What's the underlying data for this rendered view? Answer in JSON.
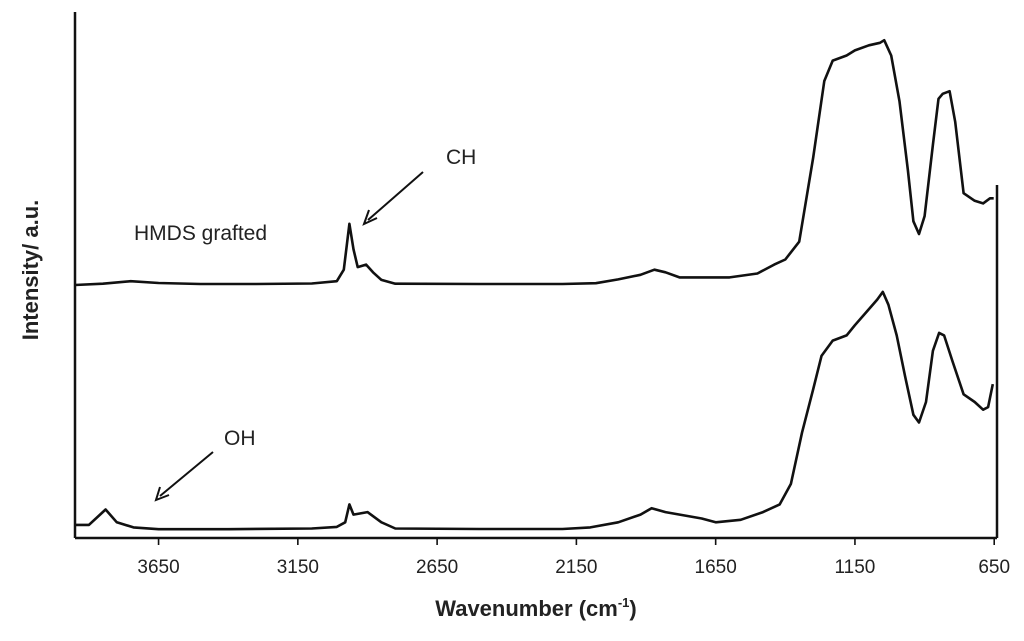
{
  "chart_data": {
    "type": "line",
    "title": "",
    "xlabel": "Wavenumber (cm",
    "xlabel_sup": "-1",
    "xlabel_end": ")",
    "ylabel": "Intensity/ a.u.",
    "xlim": [
      3950,
      640
    ],
    "x_reversed": true,
    "y_ticks_shown": false,
    "grid": false,
    "x_ticks": [
      "3650",
      "3150",
      "2650",
      "2150",
      "1650",
      "1150",
      "650"
    ],
    "x_tick_values": [
      3650,
      3150,
      2650,
      2150,
      1650,
      1150,
      650
    ],
    "series": [
      {
        "name": "HMDS grafted",
        "points": [
          [
            3950,
            0.0
          ],
          [
            3850,
            0.005
          ],
          [
            3750,
            0.015
          ],
          [
            3650,
            0.008
          ],
          [
            3500,
            0.004
          ],
          [
            3300,
            0.004
          ],
          [
            3100,
            0.006
          ],
          [
            3010,
            0.015
          ],
          [
            2985,
            0.06
          ],
          [
            2965,
            0.24
          ],
          [
            2950,
            0.14
          ],
          [
            2935,
            0.07
          ],
          [
            2905,
            0.08
          ],
          [
            2880,
            0.05
          ],
          [
            2850,
            0.02
          ],
          [
            2800,
            0.005
          ],
          [
            2500,
            0.004
          ],
          [
            2200,
            0.004
          ],
          [
            2080,
            0.007
          ],
          [
            2000,
            0.022
          ],
          [
            1920,
            0.04
          ],
          [
            1870,
            0.06
          ],
          [
            1830,
            0.05
          ],
          [
            1780,
            0.03
          ],
          [
            1700,
            0.03
          ],
          [
            1600,
            0.03
          ],
          [
            1500,
            0.045
          ],
          [
            1440,
            0.08
          ],
          [
            1400,
            0.1
          ],
          [
            1350,
            0.17
          ],
          [
            1300,
            0.5
          ],
          [
            1260,
            0.8
          ],
          [
            1230,
            0.88
          ],
          [
            1180,
            0.9
          ],
          [
            1150,
            0.92
          ],
          [
            1100,
            0.94
          ],
          [
            1060,
            0.95
          ],
          [
            1045,
            0.96
          ],
          [
            1020,
            0.9
          ],
          [
            990,
            0.72
          ],
          [
            960,
            0.45
          ],
          [
            940,
            0.25
          ],
          [
            920,
            0.2
          ],
          [
            900,
            0.27
          ],
          [
            870,
            0.55
          ],
          [
            850,
            0.73
          ],
          [
            835,
            0.75
          ],
          [
            810,
            0.76
          ],
          [
            790,
            0.64
          ],
          [
            760,
            0.36
          ],
          [
            720,
            0.33
          ],
          [
            690,
            0.32
          ],
          [
            665,
            0.34
          ],
          [
            652,
            0.34
          ]
        ]
      },
      {
        "name": "",
        "points": [
          [
            3950,
            0.02
          ],
          [
            3900,
            0.02
          ],
          [
            3840,
            0.08
          ],
          [
            3800,
            0.03
          ],
          [
            3740,
            0.01
          ],
          [
            3650,
            0.003
          ],
          [
            3400,
            0.003
          ],
          [
            3100,
            0.006
          ],
          [
            3010,
            0.012
          ],
          [
            2980,
            0.03
          ],
          [
            2965,
            0.1
          ],
          [
            2950,
            0.06
          ],
          [
            2900,
            0.07
          ],
          [
            2850,
            0.03
          ],
          [
            2800,
            0.006
          ],
          [
            2500,
            0.004
          ],
          [
            2200,
            0.004
          ],
          [
            2100,
            0.01
          ],
          [
            2000,
            0.03
          ],
          [
            1920,
            0.06
          ],
          [
            1880,
            0.085
          ],
          [
            1830,
            0.07
          ],
          [
            1700,
            0.045
          ],
          [
            1650,
            0.03
          ],
          [
            1560,
            0.04
          ],
          [
            1480,
            0.07
          ],
          [
            1420,
            0.1
          ],
          [
            1380,
            0.18
          ],
          [
            1340,
            0.38
          ],
          [
            1300,
            0.55
          ],
          [
            1270,
            0.68
          ],
          [
            1230,
            0.74
          ],
          [
            1180,
            0.76
          ],
          [
            1150,
            0.8
          ],
          [
            1110,
            0.85
          ],
          [
            1070,
            0.9
          ],
          [
            1050,
            0.93
          ],
          [
            1030,
            0.88
          ],
          [
            1000,
            0.76
          ],
          [
            970,
            0.6
          ],
          [
            940,
            0.45
          ],
          [
            920,
            0.42
          ],
          [
            895,
            0.5
          ],
          [
            870,
            0.7
          ],
          [
            848,
            0.77
          ],
          [
            830,
            0.76
          ],
          [
            800,
            0.66
          ],
          [
            760,
            0.53
          ],
          [
            720,
            0.5
          ],
          [
            690,
            0.47
          ],
          [
            672,
            0.48
          ],
          [
            655,
            0.57
          ]
        ]
      }
    ],
    "annotations": [
      {
        "text": "CH",
        "points_to_x": 2935
      },
      {
        "text": "OH",
        "points_to_x": 3635
      }
    ]
  }
}
